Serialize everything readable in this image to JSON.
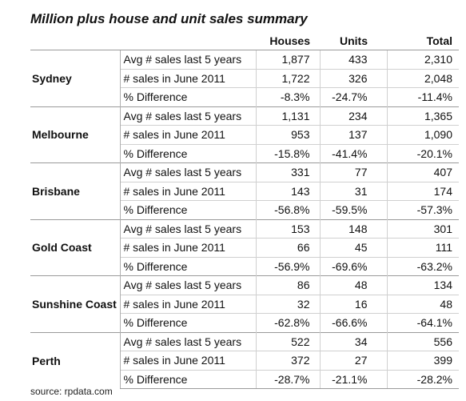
{
  "title": "Million plus house and unit sales summary",
  "headers": {
    "houses": "Houses",
    "units": "Units",
    "total": "Total"
  },
  "cities": [
    {
      "name": "Sydney",
      "rows": [
        {
          "metric": "Avg # sales last 5 years",
          "houses": "1,877",
          "units": "433",
          "total": "2,310"
        },
        {
          "metric": "# sales in June 2011",
          "houses": "1,722",
          "units": "326",
          "total": "2,048"
        },
        {
          "metric": "% Difference",
          "houses": "-8.3%",
          "units": "-24.7%",
          "total": "-11.4%"
        }
      ]
    },
    {
      "name": "Melbourne",
      "rows": [
        {
          "metric": "Avg # sales last 5 years",
          "houses": "1,131",
          "units": "234",
          "total": "1,365"
        },
        {
          "metric": "# sales in June 2011",
          "houses": "953",
          "units": "137",
          "total": "1,090"
        },
        {
          "metric": "% Difference",
          "houses": "-15.8%",
          "units": "-41.4%",
          "total": "-20.1%"
        }
      ]
    },
    {
      "name": "Brisbane",
      "rows": [
        {
          "metric": "Avg # sales last 5 years",
          "houses": "331",
          "units": "77",
          "total": "407"
        },
        {
          "metric": "# sales in June 2011",
          "houses": "143",
          "units": "31",
          "total": "174"
        },
        {
          "metric": "% Difference",
          "houses": "-56.8%",
          "units": "-59.5%",
          "total": "-57.3%"
        }
      ]
    },
    {
      "name": "Gold Coast",
      "rows": [
        {
          "metric": "Avg # sales last 5 years",
          "houses": "153",
          "units": "148",
          "total": "301"
        },
        {
          "metric": "# sales in June 2011",
          "houses": "66",
          "units": "45",
          "total": "111"
        },
        {
          "metric": "% Difference",
          "houses": "-56.9%",
          "units": "-69.6%",
          "total": "-63.2%"
        }
      ]
    },
    {
      "name": "Sunshine Coast",
      "rows": [
        {
          "metric": "Avg # sales last 5 years",
          "houses": "86",
          "units": "48",
          "total": "134"
        },
        {
          "metric": "# sales in June 2011",
          "houses": "32",
          "units": "16",
          "total": "48"
        },
        {
          "metric": "% Difference",
          "houses": "-62.8%",
          "units": "-66.6%",
          "total": "-64.1%"
        }
      ]
    },
    {
      "name": "Perth",
      "rows": [
        {
          "metric": "Avg # sales last 5 years",
          "houses": "522",
          "units": "34",
          "total": "556"
        },
        {
          "metric": "# sales in June 2011",
          "houses": "372",
          "units": "27",
          "total": "399"
        },
        {
          "metric": "% Difference",
          "houses": "-28.7%",
          "units": "-21.1%",
          "total": "-28.2%"
        }
      ]
    }
  ],
  "source": "source:  rpdata.com"
}
